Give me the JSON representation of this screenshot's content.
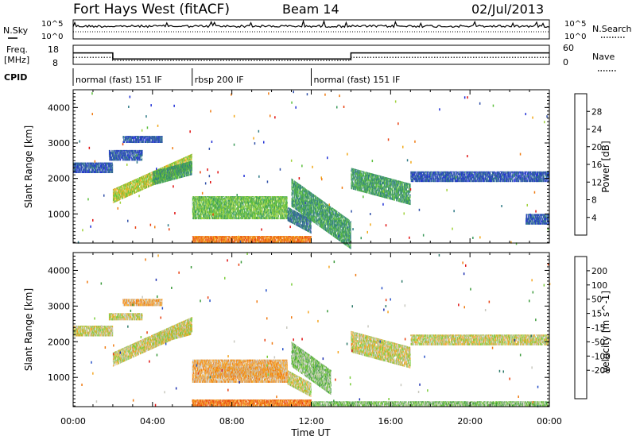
{
  "header": {
    "station": "Fort Hays West (fitACF)",
    "beam": "Beam 14",
    "date": "02/Jul/2013"
  },
  "top_panels": {
    "nsky_label": "N.Sky",
    "nsky_ticks": [
      "10^5",
      "10^0"
    ],
    "nsearch_label": "N.Search",
    "nsearch_ticks": [
      "10^5",
      "10^0"
    ],
    "freq_label": "Freq.",
    "freq_unit": "[MHz]",
    "freq_ticks": [
      "18",
      "8"
    ],
    "nave_label": "Nave",
    "nave_ticks": [
      "60",
      "0"
    ],
    "cpid_label": "CPID",
    "cpid_segments": [
      {
        "label": "normal (fast) 151 IF",
        "start": 0,
        "end": 6
      },
      {
        "label": "rbsp 200 IF",
        "start": 6,
        "end": 12
      },
      {
        "label": "normal (fast) 151 IF",
        "start": 12,
        "end": 24
      }
    ],
    "freq_series": {
      "x": [
        0,
        2,
        2,
        6,
        6,
        14,
        14,
        24
      ],
      "y": [
        14,
        14,
        10.8,
        10.8,
        10.8,
        10.8,
        14,
        14
      ]
    },
    "nave_series": {
      "x": [
        0,
        2,
        2,
        6,
        14,
        14,
        24
      ],
      "y": [
        22,
        22,
        12,
        12,
        12,
        22,
        22
      ]
    }
  },
  "chart_data": [
    {
      "type": "heatmap",
      "title": "",
      "ylabel": "Slant Range [km]",
      "xlabel": "",
      "xlim": [
        0,
        24
      ],
      "ylim": [
        180,
        4500
      ],
      "yticks": [
        "1000",
        "2000",
        "3000",
        "4000"
      ],
      "yticks_values": [
        1000,
        2000,
        3000,
        4000
      ],
      "colorbar": {
        "label": "Power [dB]",
        "ticks": [
          "4",
          "8",
          "12",
          "16",
          "20",
          "24",
          "28"
        ],
        "colors": [
          "#1f2fd6",
          "#2f4fa8",
          "#2f7a86",
          "#3a9a5a",
          "#5abf3a",
          "#a0d23a",
          "#f2a818",
          "#f07a10",
          "#e84010",
          "#e01010"
        ]
      },
      "regions": [
        {
          "t0": 0.0,
          "t1": 2.0,
          "r0": 2150,
          "r1": 2450,
          "slope": 0,
          "level": 1
        },
        {
          "t0": 1.8,
          "t1": 3.5,
          "r0": 2500,
          "r1": 2800,
          "slope": 0,
          "level": 1
        },
        {
          "t0": 2.0,
          "t1": 6.0,
          "r0": 1300,
          "r1": 1700,
          "slope": 250,
          "level": 5
        },
        {
          "t0": 2.5,
          "t1": 4.5,
          "r0": 3000,
          "r1": 3200,
          "slope": 0,
          "level": 1
        },
        {
          "t0": 4.0,
          "t1": 6.0,
          "r0": 1800,
          "r1": 2200,
          "slope": 150,
          "level": 3
        },
        {
          "t0": 6.0,
          "t1": 10.8,
          "r0": 850,
          "r1": 1500,
          "slope": 0,
          "level": 4
        },
        {
          "t0": 10.8,
          "t1": 12.0,
          "r0": 800,
          "r1": 1200,
          "slope": -300,
          "level": 2
        },
        {
          "t0": 11.0,
          "t1": 14.0,
          "r0": 1200,
          "r1": 2000,
          "slope": -400,
          "level": 3
        },
        {
          "t0": 14.0,
          "t1": 17.0,
          "r0": 1700,
          "r1": 2300,
          "slope": -150,
          "level": 3
        },
        {
          "t0": 17.0,
          "t1": 24.0,
          "r0": 1900,
          "r1": 2200,
          "slope": 0,
          "level": 1
        },
        {
          "t0": 22.8,
          "t1": 24.0,
          "r0": 700,
          "r1": 1000,
          "slope": 0,
          "level": 1
        },
        {
          "t0": 6.0,
          "t1": 12.0,
          "r0": 180,
          "r1": 380,
          "slope": 0,
          "level": 7
        }
      ]
    },
    {
      "type": "heatmap",
      "title": "",
      "ylabel": "Slant Range [km]",
      "xlabel": "Time UT",
      "xlim": [
        0,
        24
      ],
      "ylim": [
        180,
        4500
      ],
      "xticks": [
        "00:00",
        "04:00",
        "08:00",
        "12:00",
        "16:00",
        "20:00",
        "00:00"
      ],
      "xticks_values": [
        0,
        4,
        8,
        12,
        16,
        20,
        24
      ],
      "yticks": [
        "1000",
        "2000",
        "3000",
        "4000"
      ],
      "yticks_values": [
        1000,
        2000,
        3000,
        4000
      ],
      "colorbar": {
        "label": "Velocity [m s^-1]",
        "ticks": [
          "200",
          "100",
          "50",
          "15",
          "-15",
          "-50",
          "-100",
          "-200"
        ],
        "colors": [
          "#1c2fb0",
          "#2650c8",
          "#2e7a6a",
          "#3a9a3a",
          "#7acc3a",
          "#c8c8bf",
          "#f5a623",
          "#f07a10",
          "#e84010",
          "#e01010"
        ]
      },
      "regions": [
        {
          "t0": 0.0,
          "t1": 2.0,
          "r0": 2150,
          "r1": 2450,
          "slope": 0,
          "level": 5
        },
        {
          "t0": 1.8,
          "t1": 3.5,
          "r0": 2600,
          "r1": 2800,
          "slope": 0,
          "level": 5
        },
        {
          "t0": 2.0,
          "t1": 6.0,
          "r0": 1300,
          "r1": 1700,
          "slope": 250,
          "level": 5
        },
        {
          "t0": 2.5,
          "t1": 4.5,
          "r0": 3000,
          "r1": 3200,
          "slope": 0,
          "level": 6
        },
        {
          "t0": 4.0,
          "t1": 6.0,
          "r0": 1900,
          "r1": 2200,
          "slope": 150,
          "level": 5
        },
        {
          "t0": 6.0,
          "t1": 10.8,
          "r0": 850,
          "r1": 1500,
          "slope": 0,
          "level": 6
        },
        {
          "t0": 7.0,
          "t1": 10.5,
          "r0": 1000,
          "r1": 1300,
          "slope": 0,
          "level": 6
        },
        {
          "t0": 10.8,
          "t1": 12.0,
          "r0": 800,
          "r1": 1200,
          "slope": -300,
          "level": 5
        },
        {
          "t0": 11.0,
          "t1": 13.0,
          "r0": 1300,
          "r1": 2000,
          "slope": -400,
          "level": 4
        },
        {
          "t0": 14.0,
          "t1": 17.0,
          "r0": 1700,
          "r1": 2300,
          "slope": -150,
          "level": 5
        },
        {
          "t0": 17.0,
          "t1": 24.0,
          "r0": 1900,
          "r1": 2200,
          "slope": 0,
          "level": 5
        },
        {
          "t0": 6.0,
          "t1": 12.0,
          "r0": 180,
          "r1": 380,
          "slope": 0,
          "level": 7
        },
        {
          "t0": 12.0,
          "t1": 24.0,
          "r0": 180,
          "r1": 330,
          "slope": 0,
          "level": 4
        }
      ]
    }
  ]
}
